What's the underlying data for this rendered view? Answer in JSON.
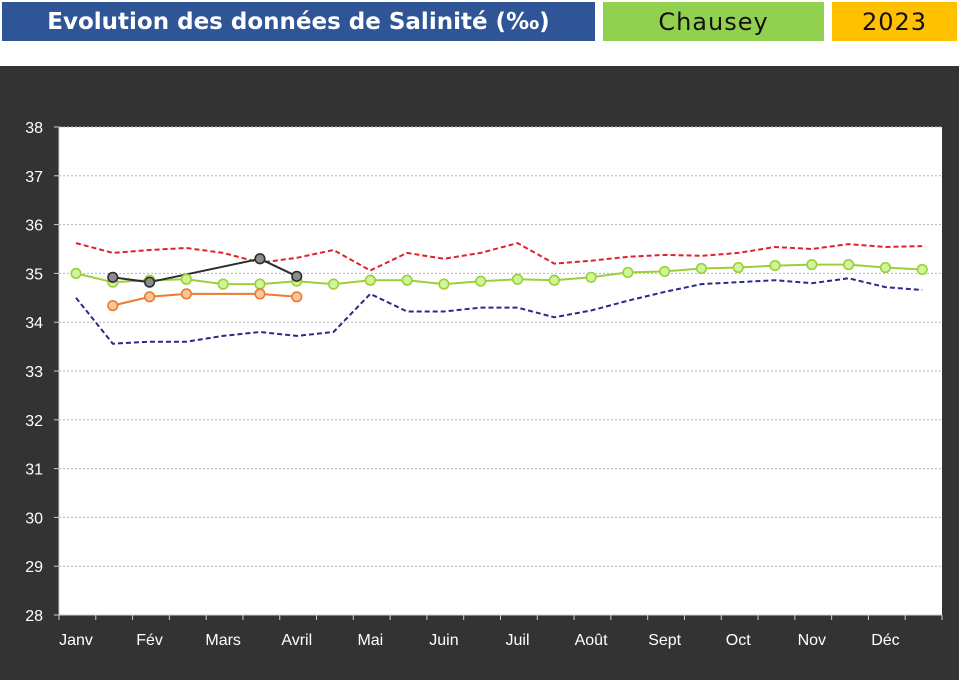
{
  "header": {
    "title": "Evolution des données de Salinité (‰)",
    "site": "Chausey",
    "year": "2023"
  },
  "colors": {
    "title_bg": "#2f5597",
    "site_bg": "#92d050",
    "year_bg": "#ffc000",
    "chart_bg": "#333333",
    "plot_bg": "#ffffff"
  },
  "chart_data": {
    "type": "line",
    "title": "",
    "xlabel": "",
    "ylabel": "",
    "ylim": [
      28,
      38
    ],
    "yticks": [
      28,
      29,
      30,
      31,
      32,
      33,
      34,
      35,
      36,
      37,
      38
    ],
    "categories": [
      "Janv",
      "Fév",
      "Mars",
      "Avril",
      "Mai",
      "Juin",
      "Juil",
      "Août",
      "Sept",
      "Oct",
      "Nov",
      "Déc"
    ],
    "grid": true,
    "legend": "none",
    "series": [
      {
        "style": "dashed",
        "color": "#e0202a",
        "x": [
          0.0,
          0.5,
          1.0,
          1.5,
          2.0,
          2.5,
          3.0,
          3.5,
          4.0,
          4.5,
          5.0,
          5.5,
          6.0,
          6.5,
          7.0,
          7.5,
          8.0,
          8.5,
          9.0,
          9.5,
          10.0,
          10.5,
          11.0,
          11.5
        ],
        "values": [
          35.62,
          35.42,
          35.48,
          35.52,
          35.42,
          35.22,
          35.32,
          35.48,
          35.06,
          35.42,
          35.3,
          35.42,
          35.62,
          35.2,
          35.26,
          35.34,
          35.38,
          35.36,
          35.42,
          35.54,
          35.5,
          35.6,
          35.54,
          35.56
        ]
      },
      {
        "style": "dashed",
        "color": "#2a2a8a",
        "x": [
          0.0,
          0.5,
          1.0,
          1.5,
          2.0,
          2.5,
          3.0,
          3.5,
          4.0,
          4.5,
          5.0,
          5.5,
          6.0,
          6.5,
          7.0,
          7.5,
          8.0,
          8.5,
          9.0,
          9.5,
          10.0,
          10.5,
          11.0,
          11.5
        ],
        "values": [
          34.5,
          33.56,
          33.6,
          33.6,
          33.72,
          33.8,
          33.72,
          33.8,
          34.58,
          34.22,
          34.22,
          34.3,
          34.3,
          34.1,
          34.24,
          34.44,
          34.62,
          34.78,
          34.82,
          34.86,
          34.8,
          34.9,
          34.72,
          34.66
        ]
      },
      {
        "style": "solid-markers",
        "color": "#9ccf3a",
        "marker_fill": "#cdf59a",
        "x": [
          0.0,
          0.5,
          1.0,
          1.5,
          2.0,
          2.5,
          3.0,
          3.5,
          4.0,
          4.5,
          5.0,
          5.5,
          6.0,
          6.5,
          7.0,
          7.5,
          8.0,
          8.5,
          9.0,
          9.5,
          10.0,
          10.5,
          11.0,
          11.5
        ],
        "values": [
          35.0,
          34.82,
          34.86,
          34.88,
          34.78,
          34.78,
          34.84,
          34.78,
          34.86,
          34.86,
          34.78,
          34.84,
          34.88,
          34.86,
          34.92,
          35.02,
          35.04,
          35.1,
          35.12,
          35.16,
          35.18,
          35.18,
          35.12,
          35.08
        ]
      },
      {
        "style": "solid-markers",
        "color": "#2d2d2d",
        "marker_fill": "#8c8c8c",
        "x": [
          0.5,
          1.0,
          2.5,
          3.0
        ],
        "values": [
          34.92,
          34.82,
          35.3,
          34.94
        ]
      },
      {
        "style": "solid-markers",
        "color": "#ee7a30",
        "marker_fill": "#fbc59a",
        "x": [
          0.5,
          1.0,
          1.5,
          2.5,
          3.0
        ],
        "values": [
          34.34,
          34.52,
          34.58,
          34.58,
          34.52
        ]
      }
    ]
  }
}
